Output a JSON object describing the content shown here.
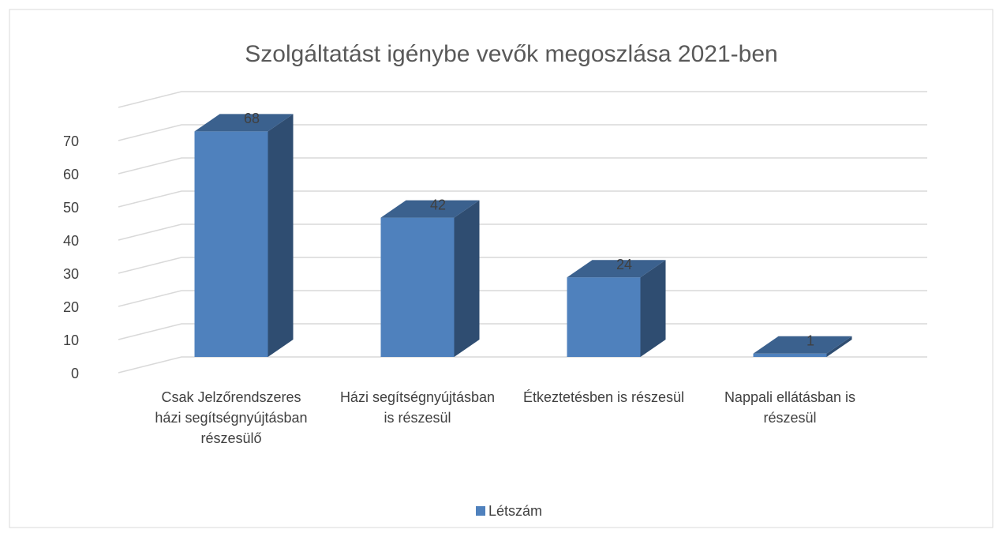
{
  "chart_data": {
    "type": "bar3d",
    "title": "Szolgáltatást igénybe vevők megoszlása 2021-ben",
    "categories": [
      "Csak Jelzőrendszeres házi segítségnyújtásban részesülő",
      "Házi segítségnyújtásban is részesül",
      "Étkeztetésben is részesül",
      "Nappali ellátásban is részesül"
    ],
    "series": [
      {
        "name": "Létszám",
        "color": "#4f81bd",
        "values": [
          68,
          42,
          24,
          1
        ]
      }
    ],
    "ylim": [
      0,
      80
    ],
    "yticks": [
      0,
      10,
      20,
      30,
      40,
      50,
      60,
      70
    ],
    "grid": true,
    "legend": "bottom"
  }
}
